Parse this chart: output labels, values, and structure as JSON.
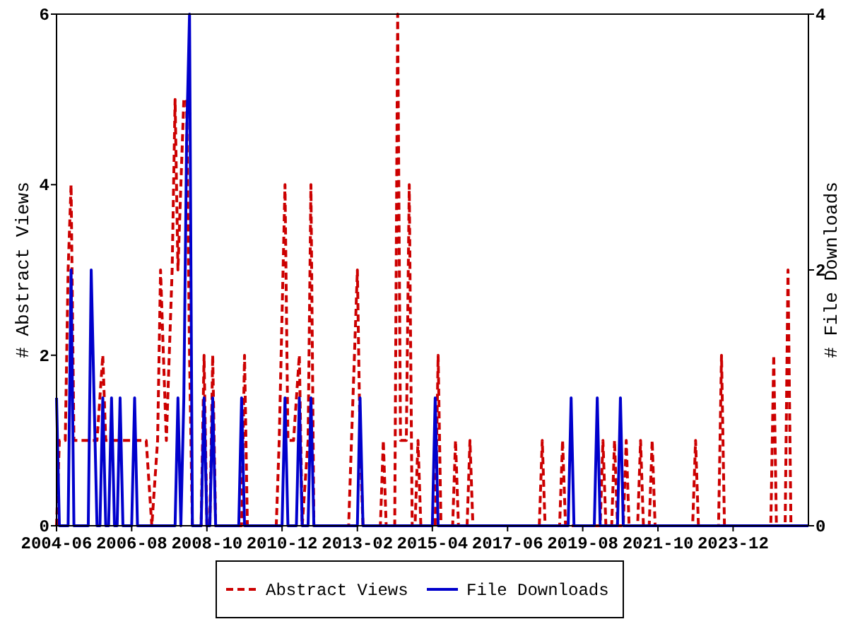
{
  "chart_data": {
    "type": "line",
    "xlabel": null,
    "ylabel": "# Abstract Views",
    "y2label": "# File Downloads",
    "xlim": [
      "2004-06",
      "2026-02"
    ],
    "xticks": [
      "2004-06",
      "2006-08",
      "2008-10",
      "2010-12",
      "2013-02",
      "2015-04",
      "2017-06",
      "2019-08",
      "2021-10",
      "2023-12"
    ],
    "ylim": [
      0,
      6
    ],
    "yticks": [
      0,
      2,
      4,
      6
    ],
    "y2lim": [
      0,
      4
    ],
    "y2ticks": [
      0,
      2,
      4
    ],
    "grid": false,
    "legend": "bottom",
    "marker": "none",
    "series": [
      {
        "name": "Abstract Views",
        "color": "#cc0000",
        "line_style": "dashed",
        "axis": "y",
        "x": [
          "2004-06",
          "2004-07",
          "2004-09",
          "2004-10",
          "2004-11",
          "2004-12",
          "2005-02",
          "2005-04",
          "2005-06",
          "2005-08",
          "2005-10",
          "2005-11",
          "2006-01",
          "2006-03",
          "2006-05",
          "2006-07",
          "2006-09",
          "2006-11",
          "2007-01",
          "2007-03",
          "2007-05",
          "2007-06",
          "2007-07",
          "2007-08",
          "2007-10",
          "2007-11",
          "2007-12",
          "2008-01",
          "2008-02",
          "2008-03",
          "2008-04",
          "2008-05",
          "2008-08",
          "2008-09",
          "2008-10",
          "2008-11",
          "2008-12",
          "2009-01",
          "2009-10",
          "2009-11",
          "2009-12",
          "2010-10",
          "2010-11",
          "2011-01",
          "2011-02",
          "2011-04",
          "2011-06",
          "2011-07",
          "2011-09",
          "2011-10",
          "2011-11",
          "2012-11",
          "2012-12",
          "2013-02",
          "2013-03",
          "2013-04",
          "2013-10",
          "2013-11",
          "2013-12",
          "2014-03",
          "2014-04",
          "2014-05",
          "2014-07",
          "2014-08",
          "2014-09",
          "2014-10",
          "2014-11",
          "2014-12",
          "2015-05",
          "2015-06",
          "2015-07",
          "2015-11",
          "2015-12",
          "2016-01",
          "2016-04",
          "2016-05",
          "2016-06",
          "2018-05",
          "2018-06",
          "2018-07",
          "2018-12",
          "2019-01",
          "2019-02",
          "2020-02",
          "2020-03",
          "2020-04",
          "2020-06",
          "2020-07",
          "2020-08",
          "2020-10",
          "2020-11",
          "2020-12",
          "2021-03",
          "2021-04",
          "2021-05",
          "2021-07",
          "2021-08",
          "2021-09",
          "2022-10",
          "2022-11",
          "2022-12",
          "2023-07",
          "2023-08",
          "2023-09",
          "2025-01",
          "2025-02",
          "2025-03",
          "2025-06",
          "2025-07",
          "2025-08",
          "2026-02"
        ],
        "values": [
          0,
          1,
          1,
          3,
          4,
          1,
          1,
          1,
          1,
          1,
          2,
          1,
          1,
          1,
          1,
          1,
          1,
          1,
          1,
          0,
          1,
          3,
          2,
          1,
          3,
          5,
          3,
          4,
          5,
          5,
          2,
          0,
          0,
          2,
          0,
          0,
          2,
          0,
          0,
          2,
          0,
          0,
          1,
          4,
          1,
          1,
          2,
          0,
          1,
          4,
          0,
          0,
          1,
          3,
          1,
          0,
          0,
          1,
          0,
          0,
          6,
          1,
          1,
          4,
          0,
          0,
          1,
          0,
          0,
          2,
          0,
          0,
          1,
          0,
          0,
          1,
          0,
          0,
          1,
          0,
          0,
          1,
          0,
          0,
          1,
          0,
          0,
          1,
          0,
          0,
          1,
          0,
          0,
          1,
          0,
          0,
          1,
          0,
          0,
          1,
          0,
          0,
          2,
          0,
          0,
          2,
          0,
          0,
          3,
          0,
          0
        ]
      },
      {
        "name": "File Downloads",
        "color": "#0000cc",
        "line_style": "solid",
        "axis": "y2",
        "x": [
          "2004-06",
          "2004-07",
          "2004-10",
          "2004-11",
          "2004-12",
          "2005-05",
          "2005-06",
          "2005-07",
          "2005-08",
          "2005-09",
          "2005-10",
          "2005-11",
          "2005-12",
          "2006-01",
          "2006-02",
          "2006-03",
          "2006-04",
          "2006-05",
          "2006-08",
          "2006-09",
          "2006-10",
          "2007-11",
          "2007-12",
          "2008-01",
          "2008-02",
          "2008-03",
          "2008-04",
          "2008-05",
          "2008-08",
          "2008-09",
          "2008-10",
          "2008-11",
          "2008-12",
          "2009-01",
          "2009-09",
          "2009-10",
          "2009-11",
          "2010-12",
          "2011-01",
          "2011-02",
          "2011-05",
          "2011-06",
          "2011-07",
          "2011-09",
          "2011-10",
          "2011-11",
          "2013-02",
          "2013-03",
          "2013-04",
          "2015-04",
          "2015-05",
          "2015-06",
          "2019-03",
          "2019-04",
          "2019-05",
          "2019-12",
          "2020-01",
          "2020-02",
          "2020-08",
          "2020-09",
          "2020-10",
          "2026-02"
        ],
        "values": [
          1,
          0,
          0,
          2,
          0,
          0,
          2,
          1,
          0,
          0,
          1,
          0,
          0,
          1,
          0,
          0,
          1,
          0,
          0,
          1,
          0,
          0,
          1,
          0,
          1,
          3,
          4,
          0,
          0,
          1,
          0,
          0,
          1,
          0,
          0,
          1,
          0,
          0,
          1,
          0,
          0,
          1,
          0,
          0,
          1,
          0,
          0,
          1,
          0,
          0,
          1,
          0,
          0,
          1,
          0,
          0,
          1,
          0,
          0,
          1,
          0,
          0
        ]
      }
    ]
  }
}
